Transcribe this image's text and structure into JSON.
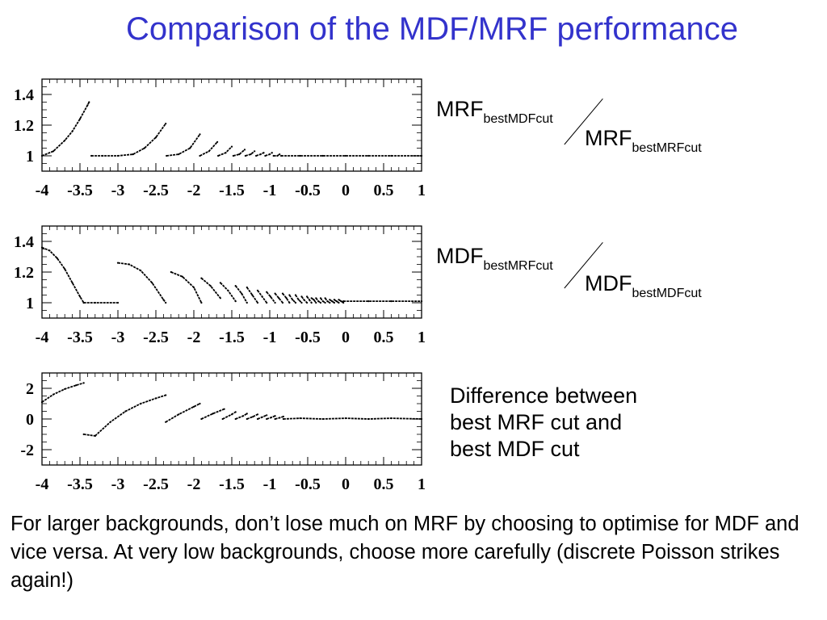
{
  "title": "Comparison of the MDF/MRF performance",
  "annotations": {
    "ratio1": {
      "num_main": "MRF",
      "num_sub": "bestMDFcut",
      "den_main": "MRF",
      "den_sub": "bestMRFcut"
    },
    "ratio2": {
      "num_main": "MDF",
      "num_sub": "bestMRFcut",
      "den_main": "MDF",
      "den_sub": "bestMDFcut"
    },
    "difference_text": "Difference between\nbest MRF cut and\nbest MDF cut"
  },
  "footer": "For larger backgrounds, don’t lose much on MRF by choosing to optimise for MDF and vice versa. At very low backgrounds, choose more carefully (discrete Poisson strikes again!)",
  "chart_data": [
    {
      "type": "scatter",
      "title": "",
      "xlabel": "",
      "ylabel": "",
      "xlim": [
        -4,
        1
      ],
      "ylim": [
        0.9,
        1.5
      ],
      "xticks": [
        -4,
        -3.5,
        -3,
        -2.5,
        -2,
        -1.5,
        -1,
        -0.5,
        0,
        0.5,
        1
      ],
      "xtick_labels": [
        "-4",
        "-3.5",
        "-3",
        "-2.5",
        "-2",
        "-1.5",
        "-1",
        "-0.5",
        "0",
        "0.5",
        "1"
      ],
      "yticks": [
        1,
        1.2,
        1.4
      ],
      "ytick_labels": [
        "1",
        "1.2",
        "1.4"
      ],
      "grid": false,
      "segments": [
        {
          "x": [
            -4.0,
            -3.85,
            -3.7,
            -3.6,
            -3.5,
            -3.4,
            -3.38
          ],
          "y": [
            1.0,
            1.03,
            1.1,
            1.16,
            1.24,
            1.33,
            1.35
          ]
        },
        {
          "x": [
            -3.35,
            -3.2,
            -3.0,
            -2.8,
            -2.65,
            -2.5,
            -2.37
          ],
          "y": [
            1.0,
            1.0,
            1.0,
            1.01,
            1.05,
            1.12,
            1.21
          ]
        },
        {
          "x": [
            -2.36,
            -2.2,
            -2.05,
            -1.92
          ],
          "y": [
            1.0,
            1.01,
            1.05,
            1.14
          ]
        },
        {
          "x": [
            -1.92,
            -1.8,
            -1.69
          ],
          "y": [
            1.0,
            1.03,
            1.09
          ]
        },
        {
          "x": [
            -1.68,
            -1.58,
            -1.5
          ],
          "y": [
            1.0,
            1.02,
            1.06
          ]
        },
        {
          "x": [
            -1.48,
            -1.4,
            -1.33
          ],
          "y": [
            1.0,
            1.01,
            1.04
          ]
        },
        {
          "x": [
            -1.32,
            -1.25,
            -1.2
          ],
          "y": [
            1.0,
            1.01,
            1.03
          ]
        },
        {
          "x": [
            -1.18,
            -1.12,
            -1.08
          ],
          "y": [
            1.0,
            1.01,
            1.02
          ]
        },
        {
          "x": [
            -1.06,
            -1.0,
            -0.97
          ],
          "y": [
            1.0,
            1.01,
            1.02
          ]
        },
        {
          "x": [
            -0.95,
            -0.9,
            -0.87
          ],
          "y": [
            1.0,
            1.0,
            1.01
          ]
        },
        {
          "x": [
            -0.85,
            -0.6,
            -0.3,
            0.0,
            0.3,
            0.6,
            1.0
          ],
          "y": [
            1.0,
            1.0,
            1.0,
            1.0,
            1.0,
            1.0,
            1.0
          ]
        }
      ]
    },
    {
      "type": "scatter",
      "title": "",
      "xlabel": "",
      "ylabel": "",
      "xlim": [
        -4,
        1
      ],
      "ylim": [
        0.9,
        1.5
      ],
      "xticks": [
        -4,
        -3.5,
        -3,
        -2.5,
        -2,
        -1.5,
        -1,
        -0.5,
        0,
        0.5,
        1
      ],
      "xtick_labels": [
        "-4",
        "-3.5",
        "-3",
        "-2.5",
        "-2",
        "-1.5",
        "-1",
        "-0.5",
        "0",
        "0.5",
        "1"
      ],
      "yticks": [
        1,
        1.2,
        1.4
      ],
      "ytick_labels": [
        "1",
        "1.2",
        "1.4"
      ],
      "grid": false,
      "segments": [
        {
          "x": [
            -4.0,
            -3.9,
            -3.8,
            -3.7,
            -3.6,
            -3.5,
            -3.45
          ],
          "y": [
            1.36,
            1.34,
            1.29,
            1.22,
            1.13,
            1.04,
            1.0
          ]
        },
        {
          "x": [
            -3.45,
            -3.3,
            -3.0
          ],
          "y": [
            1.0,
            1.0,
            1.0
          ]
        },
        {
          "x": [
            -3.0,
            -2.85,
            -2.7,
            -2.55,
            -2.4,
            -2.37
          ],
          "y": [
            1.26,
            1.25,
            1.21,
            1.13,
            1.02,
            1.0
          ]
        },
        {
          "x": [
            -2.3,
            -2.15,
            -2.0,
            -1.9
          ],
          "y": [
            1.2,
            1.17,
            1.1,
            1.0
          ]
        },
        {
          "x": [
            -1.9,
            -1.78,
            -1.65
          ],
          "y": [
            1.16,
            1.11,
            1.03
          ]
        },
        {
          "x": [
            -1.65,
            -1.55,
            -1.45
          ],
          "y": [
            1.13,
            1.08,
            1.01
          ]
        },
        {
          "x": [
            -1.45,
            -1.37,
            -1.3
          ],
          "y": [
            1.11,
            1.06,
            1.0
          ]
        },
        {
          "x": [
            -1.3,
            -1.23,
            -1.16
          ],
          "y": [
            1.1,
            1.05,
            1.0
          ]
        },
        {
          "x": [
            -1.16,
            -1.1,
            -1.04
          ],
          "y": [
            1.08,
            1.04,
            1.0
          ]
        },
        {
          "x": [
            -1.04,
            -0.99,
            -0.93
          ],
          "y": [
            1.07,
            1.04,
            1.0
          ]
        },
        {
          "x": [
            -0.93,
            -0.88,
            -0.83
          ],
          "y": [
            1.06,
            1.03,
            1.0
          ]
        },
        {
          "x": [
            -0.83,
            -0.78,
            -0.74
          ],
          "y": [
            1.06,
            1.03,
            1.0
          ]
        },
        {
          "x": [
            -0.74,
            -0.7,
            -0.66
          ],
          "y": [
            1.05,
            1.02,
            1.0
          ]
        },
        {
          "x": [
            -0.66,
            -0.62,
            -0.58
          ],
          "y": [
            1.05,
            1.02,
            1.0
          ]
        },
        {
          "x": [
            -0.58,
            -0.55,
            -0.51
          ],
          "y": [
            1.04,
            1.02,
            1.0
          ]
        },
        {
          "x": [
            -0.51,
            -0.48,
            -0.45
          ],
          "y": [
            1.04,
            1.02,
            1.0
          ]
        },
        {
          "x": [
            -0.45,
            -0.42,
            -0.39
          ],
          "y": [
            1.03,
            1.02,
            1.0
          ]
        },
        {
          "x": [
            -0.39,
            -0.36,
            -0.33
          ],
          "y": [
            1.03,
            1.01,
            1.0
          ]
        },
        {
          "x": [
            -0.33,
            -0.3,
            -0.27
          ],
          "y": [
            1.03,
            1.01,
            1.0
          ]
        },
        {
          "x": [
            -0.27,
            -0.24,
            -0.21
          ],
          "y": [
            1.03,
            1.01,
            1.0
          ]
        },
        {
          "x": [
            -0.21,
            -0.18,
            -0.15
          ],
          "y": [
            1.02,
            1.01,
            1.0
          ]
        },
        {
          "x": [
            -0.15,
            -0.12,
            -0.09
          ],
          "y": [
            1.02,
            1.01,
            1.0
          ]
        },
        {
          "x": [
            -0.09,
            -0.06,
            -0.03
          ],
          "y": [
            1.02,
            1.01,
            1.0
          ]
        },
        {
          "x": [
            -0.03,
            0.3,
            0.6,
            1.0
          ],
          "y": [
            1.01,
            1.01,
            1.01,
            1.01
          ]
        }
      ]
    },
    {
      "type": "scatter",
      "title": "",
      "xlabel": "",
      "ylabel": "",
      "xlim": [
        -4,
        1
      ],
      "ylim": [
        -3,
        3
      ],
      "xticks": [
        -4,
        -3.5,
        -3,
        -2.5,
        -2,
        -1.5,
        -1,
        -0.5,
        0,
        0.5,
        1
      ],
      "xtick_labels": [
        "-4",
        "-3.5",
        "-3",
        "-2.5",
        "-2",
        "-1.5",
        "-1",
        "-0.5",
        "0",
        "0.5",
        "1"
      ],
      "yticks": [
        -2,
        0,
        2
      ],
      "ytick_labels": [
        "-2",
        "0",
        "2"
      ],
      "grid": false,
      "segments": [
        {
          "x": [
            -4.0,
            -3.85,
            -3.7,
            -3.55,
            -3.45
          ],
          "y": [
            1.1,
            1.6,
            1.95,
            2.2,
            2.35
          ]
        },
        {
          "x": [
            -3.45,
            -3.3
          ],
          "y": [
            -1.0,
            -1.1
          ]
        },
        {
          "x": [
            -3.3,
            -3.1,
            -2.9,
            -2.7,
            -2.5,
            -2.37
          ],
          "y": [
            -1.1,
            -0.2,
            0.5,
            1.0,
            1.35,
            1.55
          ]
        },
        {
          "x": [
            -2.37,
            -2.2,
            -2.0,
            -1.92
          ],
          "y": [
            -0.2,
            0.3,
            0.8,
            1.0
          ]
        },
        {
          "x": [
            -1.9,
            -1.75,
            -1.6
          ],
          "y": [
            0.0,
            0.35,
            0.65
          ]
        },
        {
          "x": [
            -1.62,
            -1.5,
            -1.45
          ],
          "y": [
            0.0,
            0.3,
            0.45
          ]
        },
        {
          "x": [
            -1.45,
            -1.35,
            -1.3
          ],
          "y": [
            0.0,
            0.2,
            0.35
          ]
        },
        {
          "x": [
            -1.3,
            -1.22,
            -1.16
          ],
          "y": [
            0.0,
            0.15,
            0.3
          ]
        },
        {
          "x": [
            -1.16,
            -1.1,
            -1.04
          ],
          "y": [
            0.0,
            0.12,
            0.25
          ]
        },
        {
          "x": [
            -1.04,
            -0.98,
            -0.93
          ],
          "y": [
            0.0,
            0.1,
            0.2
          ]
        },
        {
          "x": [
            -0.93,
            -0.87,
            -0.82
          ],
          "y": [
            0.0,
            0.08,
            0.16
          ]
        },
        {
          "x": [
            -0.82,
            -0.6,
            -0.3,
            0.0,
            0.3,
            0.6,
            1.0
          ],
          "y": [
            0.0,
            0.05,
            0.0,
            0.05,
            0.0,
            0.05,
            0.0
          ]
        }
      ]
    }
  ]
}
